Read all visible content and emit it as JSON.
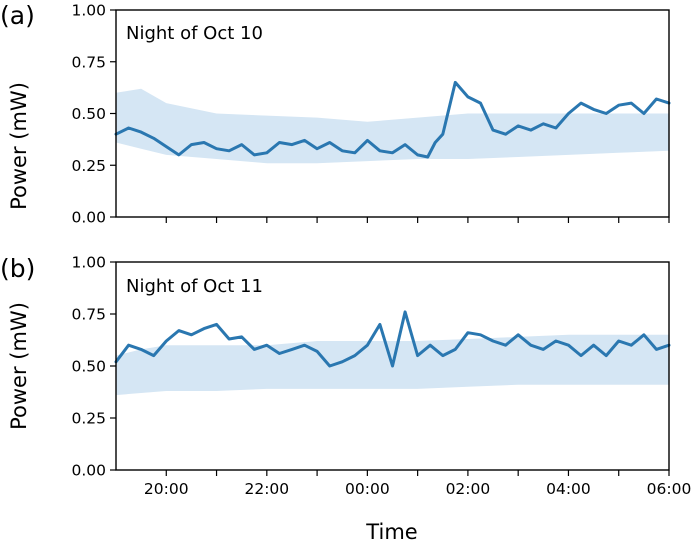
{
  "colors": {
    "line": "#2a77b0",
    "band": "#d5e6f4"
  },
  "chart_data": [
    {
      "type": "line",
      "panel_label": "(a)",
      "annotation": "Night of Oct 10",
      "xlabel": "",
      "ylabel": "Power (mW)",
      "ylim": [
        0,
        1
      ],
      "yticks": [
        "0.00",
        "0.25",
        "0.50",
        "0.75",
        "1.00"
      ],
      "xlim": [
        19.0,
        30.0
      ],
      "xtick_values": [
        20,
        21,
        22,
        23,
        24,
        25,
        26,
        27,
        28,
        29,
        30
      ],
      "xtick_labels": [],
      "grid": false,
      "series": [
        {
          "x": [
            19.0,
            19.25,
            19.5,
            19.75,
            20.0,
            20.25,
            20.5,
            20.75,
            21.0,
            21.25,
            21.5,
            21.75,
            22.0,
            22.25,
            22.5,
            22.75,
            23.0,
            23.25,
            23.5,
            23.75,
            24.0,
            24.25,
            24.5,
            24.75,
            25.0,
            25.2,
            25.35,
            25.5,
            25.75,
            26.0,
            26.25,
            26.5,
            26.75,
            27.0,
            27.25,
            27.5,
            27.75,
            28.0,
            28.25,
            28.5,
            28.75,
            29.0,
            29.25,
            29.5,
            29.75,
            30.0
          ],
          "y": [
            0.4,
            0.43,
            0.41,
            0.38,
            0.34,
            0.3,
            0.35,
            0.36,
            0.33,
            0.32,
            0.35,
            0.3,
            0.31,
            0.36,
            0.35,
            0.37,
            0.33,
            0.36,
            0.32,
            0.31,
            0.37,
            0.32,
            0.31,
            0.35,
            0.3,
            0.29,
            0.36,
            0.4,
            0.65,
            0.58,
            0.55,
            0.42,
            0.4,
            0.44,
            0.42,
            0.45,
            0.43,
            0.5,
            0.55,
            0.52,
            0.5,
            0.54,
            0.55,
            0.5,
            0.57,
            0.55
          ]
        }
      ],
      "band": {
        "x": [
          19.0,
          19.5,
          20.0,
          21.0,
          22.0,
          23.0,
          24.0,
          25.0,
          26.0,
          27.0,
          28.0,
          29.0,
          30.0
        ],
        "upper": [
          0.6,
          0.62,
          0.55,
          0.5,
          0.49,
          0.48,
          0.46,
          0.48,
          0.5,
          0.5,
          0.5,
          0.5,
          0.5
        ],
        "lower": [
          0.36,
          0.33,
          0.3,
          0.28,
          0.26,
          0.26,
          0.27,
          0.28,
          0.28,
          0.29,
          0.3,
          0.31,
          0.32
        ]
      }
    },
    {
      "type": "line",
      "panel_label": "(b)",
      "annotation": "Night of Oct 11",
      "xlabel": "Time",
      "ylabel": "Power (mW)",
      "ylim": [
        0,
        1
      ],
      "yticks": [
        "0.00",
        "0.25",
        "0.50",
        "0.75",
        "1.00"
      ],
      "xlim": [
        19.0,
        30.0
      ],
      "xtick_values": [
        20,
        21,
        22,
        23,
        24,
        25,
        26,
        27,
        28,
        29,
        30
      ],
      "xtick_labels": [
        "20:00",
        "22:00",
        "00:00",
        "02:00",
        "04:00",
        "06:00"
      ],
      "xtick_label_values": [
        20,
        22,
        24,
        26,
        28,
        30
      ],
      "grid": false,
      "series": [
        {
          "x": [
            19.0,
            19.25,
            19.5,
            19.75,
            20.0,
            20.25,
            20.5,
            20.75,
            21.0,
            21.25,
            21.5,
            21.75,
            22.0,
            22.25,
            22.5,
            22.75,
            23.0,
            23.25,
            23.5,
            23.75,
            24.0,
            24.25,
            24.5,
            24.75,
            25.0,
            25.25,
            25.5,
            25.75,
            26.0,
            26.25,
            26.5,
            26.75,
            27.0,
            27.25,
            27.5,
            27.75,
            28.0,
            28.25,
            28.5,
            28.75,
            29.0,
            29.25,
            29.5,
            29.75,
            30.0
          ],
          "y": [
            0.52,
            0.6,
            0.58,
            0.55,
            0.62,
            0.67,
            0.65,
            0.68,
            0.7,
            0.63,
            0.64,
            0.58,
            0.6,
            0.56,
            0.58,
            0.6,
            0.57,
            0.5,
            0.52,
            0.55,
            0.6,
            0.7,
            0.5,
            0.76,
            0.55,
            0.6,
            0.55,
            0.58,
            0.66,
            0.65,
            0.62,
            0.6,
            0.65,
            0.6,
            0.58,
            0.62,
            0.6,
            0.55,
            0.6,
            0.55,
            0.62,
            0.6,
            0.65,
            0.58,
            0.6
          ]
        }
      ],
      "band": {
        "x": [
          19.0,
          19.5,
          20.0,
          21.0,
          22.0,
          23.0,
          24.0,
          25.0,
          26.0,
          27.0,
          28.0,
          29.0,
          30.0
        ],
        "upper": [
          0.55,
          0.58,
          0.6,
          0.6,
          0.6,
          0.62,
          0.62,
          0.62,
          0.63,
          0.64,
          0.65,
          0.65,
          0.65
        ],
        "lower": [
          0.36,
          0.37,
          0.38,
          0.38,
          0.39,
          0.39,
          0.39,
          0.39,
          0.4,
          0.41,
          0.41,
          0.41,
          0.41
        ]
      }
    }
  ]
}
